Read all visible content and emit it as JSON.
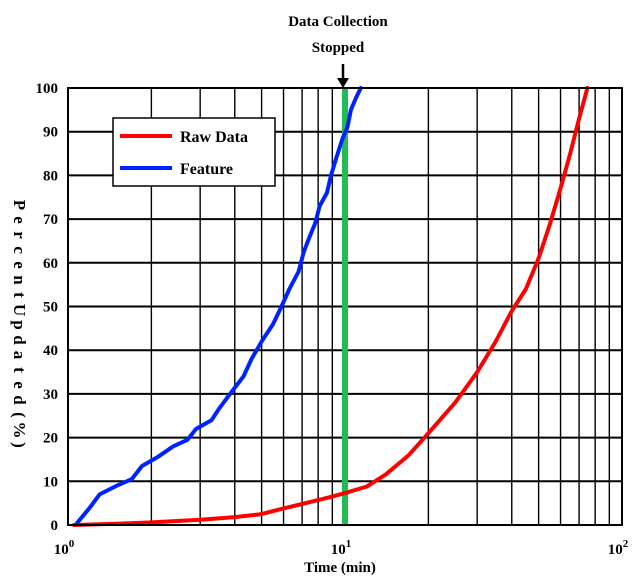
{
  "chart_data": {
    "type": "line",
    "xscale": "log",
    "xlim": [
      1,
      100
    ],
    "ylim": [
      0,
      100
    ],
    "grid": true,
    "legend_position": "top-left",
    "xlabel": "Time (min)",
    "ylabel": "Percent Updated (%)",
    "x_tick_labels": [
      {
        "value": 1,
        "base": "10",
        "exp": "0"
      },
      {
        "value": 10,
        "base": "10",
        "exp": "1"
      },
      {
        "value": 100,
        "base": "10",
        "exp": "2"
      }
    ],
    "y_ticks": [
      0,
      10,
      20,
      30,
      40,
      50,
      60,
      70,
      80,
      90,
      100
    ],
    "annotations": [
      {
        "text_lines": [
          "Data Collection",
          "Stopped"
        ],
        "x": 10,
        "marker_color": "#22bb55"
      }
    ],
    "series": [
      {
        "name": "Raw Data",
        "color": "#ff0000",
        "points": [
          [
            1.05,
            0
          ],
          [
            1.5,
            0.3
          ],
          [
            2,
            0.6
          ],
          [
            3,
            1.2
          ],
          [
            4,
            1.8
          ],
          [
            5,
            2.5
          ],
          [
            6,
            3.8
          ],
          [
            7,
            4.8
          ],
          [
            8,
            5.7
          ],
          [
            9,
            6.5
          ],
          [
            10,
            7.3
          ],
          [
            12,
            8.8
          ],
          [
            14,
            11.5
          ],
          [
            17,
            16
          ],
          [
            20,
            21
          ],
          [
            25,
            28
          ],
          [
            30,
            35
          ],
          [
            35,
            42
          ],
          [
            40,
            49
          ],
          [
            45,
            54
          ],
          [
            50,
            61
          ],
          [
            55,
            69
          ],
          [
            60,
            77
          ],
          [
            65,
            85
          ],
          [
            70,
            93
          ],
          [
            75,
            100
          ]
        ]
      },
      {
        "name": "Feature",
        "color": "#0022ff",
        "points": [
          [
            1.08,
            0.5
          ],
          [
            1.2,
            4
          ],
          [
            1.3,
            7
          ],
          [
            1.5,
            9
          ],
          [
            1.7,
            10.5
          ],
          [
            1.85,
            13.5
          ],
          [
            2.1,
            15.5
          ],
          [
            2.4,
            18
          ],
          [
            2.7,
            19.5
          ],
          [
            2.9,
            22
          ],
          [
            3.3,
            24
          ],
          [
            3.5,
            26.5
          ],
          [
            3.9,
            30.5
          ],
          [
            4.3,
            34
          ],
          [
            4.6,
            38
          ],
          [
            5,
            42
          ],
          [
            5.5,
            46
          ],
          [
            5.9,
            50
          ],
          [
            6.3,
            54
          ],
          [
            6.8,
            58
          ],
          [
            7.1,
            62.5
          ],
          [
            7.4,
            65.5
          ],
          [
            7.8,
            69
          ],
          [
            8.1,
            73
          ],
          [
            8.6,
            76
          ],
          [
            8.9,
            80
          ],
          [
            9.3,
            84
          ],
          [
            9.8,
            88.5
          ],
          [
            10.2,
            91
          ],
          [
            10.5,
            95
          ],
          [
            11,
            98
          ],
          [
            11.4,
            100
          ]
        ]
      }
    ]
  }
}
